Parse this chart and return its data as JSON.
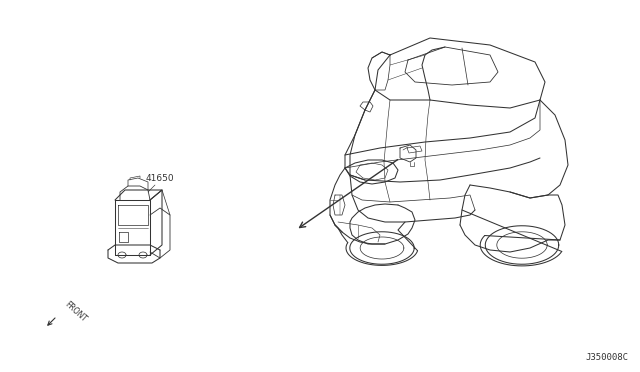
{
  "bg_color": "#ffffff",
  "line_color": "#333333",
  "part_label": "41650",
  "front_label": "FRONT",
  "diagram_code": "J350008C",
  "fig_width": 6.4,
  "fig_height": 3.72,
  "dpi": 100,
  "lw": 0.75
}
